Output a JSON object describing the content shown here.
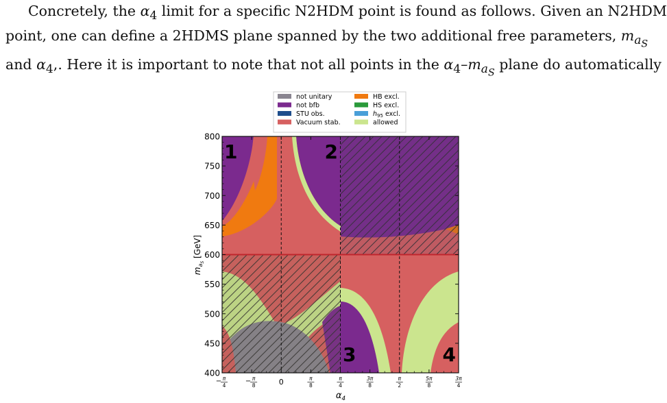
{
  "paragraph": {
    "line1_a": "Concretely, the ",
    "line1_b": " limit for a specific N2HDM point is found as follows. Given an N2HDM",
    "line2_a": "point, one can define a 2HDMS plane spanned by the two additional free parameters, ",
    "line3_a": "and ",
    "line3_b": ". Here it is important to note that not all points in the ",
    "line3_c": " plane do automatically",
    "sym_alpha4": "α₄",
    "sym_alpha": "α",
    "sym_sub4": "4",
    "sym_m": "m",
    "sym_a": "a",
    "sym_S": "S",
    "dash": "–",
    "comma": ","
  },
  "chart_data": {
    "type": "heatmap",
    "title": "",
    "xlabel": "α4",
    "ylabel": "m_{a_S} [GeV]",
    "xlim": [
      -0.7854,
      2.3562
    ],
    "ylim": [
      400,
      800
    ],
    "x_ticks": [
      {
        "value": -0.7854,
        "label": "−π/4"
      },
      {
        "value": -0.3927,
        "label": "−π/8"
      },
      {
        "value": 0,
        "label": "0"
      },
      {
        "value": 0.3927,
        "label": "π/8"
      },
      {
        "value": 0.7854,
        "label": "π/4"
      },
      {
        "value": 1.1781,
        "label": "3π/8"
      },
      {
        "value": 1.5708,
        "label": "π/2"
      },
      {
        "value": 1.9635,
        "label": "5π/8"
      },
      {
        "value": 2.3562,
        "label": "3π/4"
      }
    ],
    "y_ticks": [
      400,
      450,
      500,
      550,
      600,
      650,
      700,
      750,
      800
    ],
    "grid": false,
    "legend_position": "top",
    "legend": [
      {
        "label": "not unitary",
        "color": "#8a8590"
      },
      {
        "label": "not bfb",
        "color": "#7b2a8e"
      },
      {
        "label": "STU obs.",
        "color": "#1f4e8c"
      },
      {
        "label": "Vacuum stab.",
        "color": "#d66060"
      },
      {
        "label": "HB excl.",
        "color": "#f07a10"
      },
      {
        "label": "HS excl.",
        "color": "#2a9a3a"
      },
      {
        "label": "h95 excl.",
        "color": "#4a9fd8"
      },
      {
        "label": "allowed",
        "color": "#cbe58e"
      }
    ],
    "quadrant_labels": [
      "1",
      "2",
      "3",
      "4"
    ],
    "reference_lines": {
      "vertical_dashed_at": [
        0,
        0.7854,
        1.5708
      ],
      "horizontal_solid_at": 600
    },
    "hatched_quadrants": [
      "upper-right",
      "lower-left"
    ]
  }
}
